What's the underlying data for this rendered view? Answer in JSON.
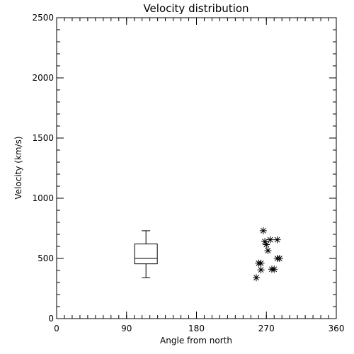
{
  "chart_data": {
    "type": "scatter",
    "title": "Velocity distribution",
    "xlabel": "Angle from north",
    "ylabel": "Velocity (km/s)",
    "xlim": [
      0,
      360
    ],
    "ylim": [
      0,
      2500
    ],
    "xticks": [
      0,
      90,
      180,
      270,
      360
    ],
    "xtick_labels": [
      "0",
      "90",
      "180",
      "270",
      "360"
    ],
    "yticks": [
      0,
      500,
      1000,
      1500,
      2000,
      2500
    ],
    "ytick_labels": [
      "0",
      "500",
      "1000",
      "1500",
      "2000",
      "2500"
    ],
    "x_minor_step": 10,
    "y_minor_step": 100,
    "grid": false,
    "box": {
      "x": 115,
      "whisker_low": 340,
      "q1": 455,
      "median": 500,
      "q3": 620,
      "whisker_high": 730
    },
    "points": [
      {
        "x": 266,
        "y": 730
      },
      {
        "x": 275,
        "y": 655
      },
      {
        "x": 284,
        "y": 655
      },
      {
        "x": 268,
        "y": 640
      },
      {
        "x": 270,
        "y": 615
      },
      {
        "x": 272,
        "y": 565
      },
      {
        "x": 284,
        "y": 500
      },
      {
        "x": 287,
        "y": 500
      },
      {
        "x": 260,
        "y": 460
      },
      {
        "x": 263,
        "y": 460
      },
      {
        "x": 277,
        "y": 410
      },
      {
        "x": 280,
        "y": 410
      },
      {
        "x": 263,
        "y": 405
      },
      {
        "x": 257,
        "y": 340
      }
    ],
    "marker": "asterisk"
  }
}
